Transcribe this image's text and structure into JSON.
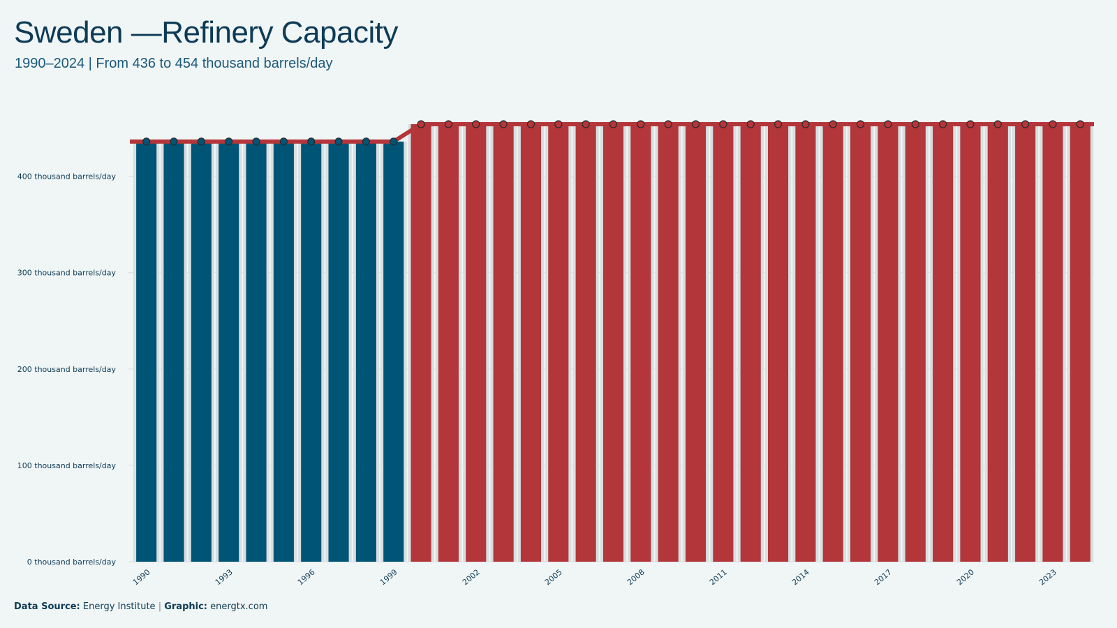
{
  "title": "Sweden —Refinery Capacity",
  "subtitle": "1990–2024 | From 436 to 454 thousand barrels/day",
  "footer": {
    "source_label": "Data Source:",
    "source_value": "Energy Institute",
    "separator": "|",
    "graphic_label": "Graphic:",
    "graphic_value": "energtx.com"
  },
  "colors": {
    "early_bar": "#005577",
    "late_bar": "#b3363a",
    "line": "#b3363a",
    "background": "#f0f5f5",
    "grid": "#d8dfe1",
    "bar_slot": "#d8dfe1"
  },
  "chart_data": {
    "type": "bar",
    "title": "Sweden —Refinery Capacity",
    "subtitle": "1990–2024 | From 436 to 454 thousand barrels/day",
    "x": [
      1990,
      1991,
      1992,
      1993,
      1994,
      1995,
      1996,
      1997,
      1998,
      1999,
      2000,
      2001,
      2002,
      2003,
      2004,
      2005,
      2006,
      2007,
      2008,
      2009,
      2010,
      2011,
      2012,
      2013,
      2014,
      2015,
      2016,
      2017,
      2018,
      2019,
      2020,
      2021,
      2022,
      2023,
      2024
    ],
    "values": [
      436,
      436,
      436,
      436,
      436,
      436,
      436,
      436,
      436,
      436,
      454,
      454,
      454,
      454,
      454,
      454,
      454,
      454,
      454,
      454,
      454,
      454,
      454,
      454,
      454,
      454,
      454,
      454,
      454,
      454,
      454,
      454,
      454,
      454,
      454
    ],
    "x_tick_labels": [
      "1990",
      "1993",
      "1996",
      "1999",
      "2002",
      "2005",
      "2008",
      "2011",
      "2014",
      "2017",
      "2020",
      "2023"
    ],
    "y_ticks": [
      0,
      100,
      200,
      300,
      400
    ],
    "y_tick_suffix": " thousand barrels/day",
    "ylim": [
      0,
      454
    ],
    "overlay": "line with markers",
    "color_split_year": 2000,
    "grid": "horizontal",
    "legend": "none"
  }
}
